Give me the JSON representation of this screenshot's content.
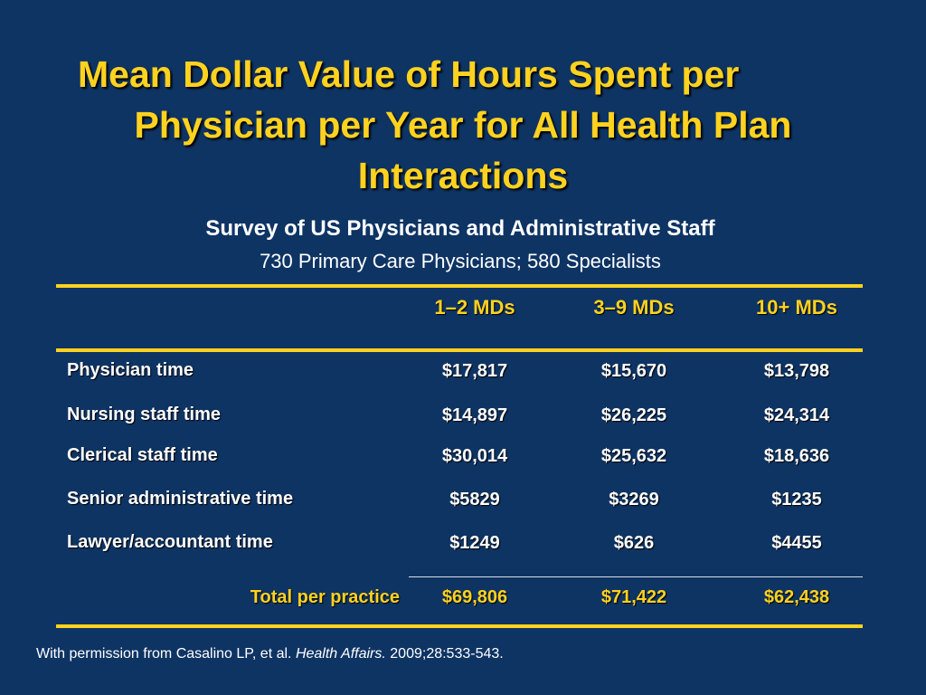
{
  "slide": {
    "title_line1": "Mean Dollar Value of Hours Spent per",
    "title_line2": "Physician per Year for All Health Plan",
    "title_line3": "Interactions",
    "subtitle": "Survey of US Physicians and Administrative Staff",
    "subsubtitle": "730 Primary Care Physicians; 580 Specialists"
  },
  "table": {
    "columns": [
      "1–2 MDs",
      "3–9 MDs",
      "10+ MDs"
    ],
    "rows": [
      {
        "label": "Physician time",
        "values": [
          "$17,817",
          "$15,670",
          "$13,798"
        ]
      },
      {
        "label": "Nursing staff time",
        "values": [
          "$14,897",
          "$26,225",
          "$24,314"
        ]
      },
      {
        "label": "Clerical staff time",
        "values": [
          "$30,014",
          "$25,632",
          "$18,636"
        ]
      },
      {
        "label": "Senior administrative time",
        "values": [
          "$5829",
          "$3269",
          "$1235"
        ]
      },
      {
        "label": "Lawyer/accountant time",
        "values": [
          "$1249",
          "$626",
          "$4455"
        ]
      }
    ],
    "total": {
      "label": "Total per practice",
      "values": [
        "$69,806",
        "$71,422",
        "$62,438"
      ]
    }
  },
  "citation": {
    "prefix": "With permission from Casalino LP, et al. ",
    "journal": "Health Affairs.",
    "suffix": " 2009;28:533-543."
  },
  "colors": {
    "background": "#0e3464",
    "accent": "#ffd21f",
    "text": "#ffffff"
  }
}
